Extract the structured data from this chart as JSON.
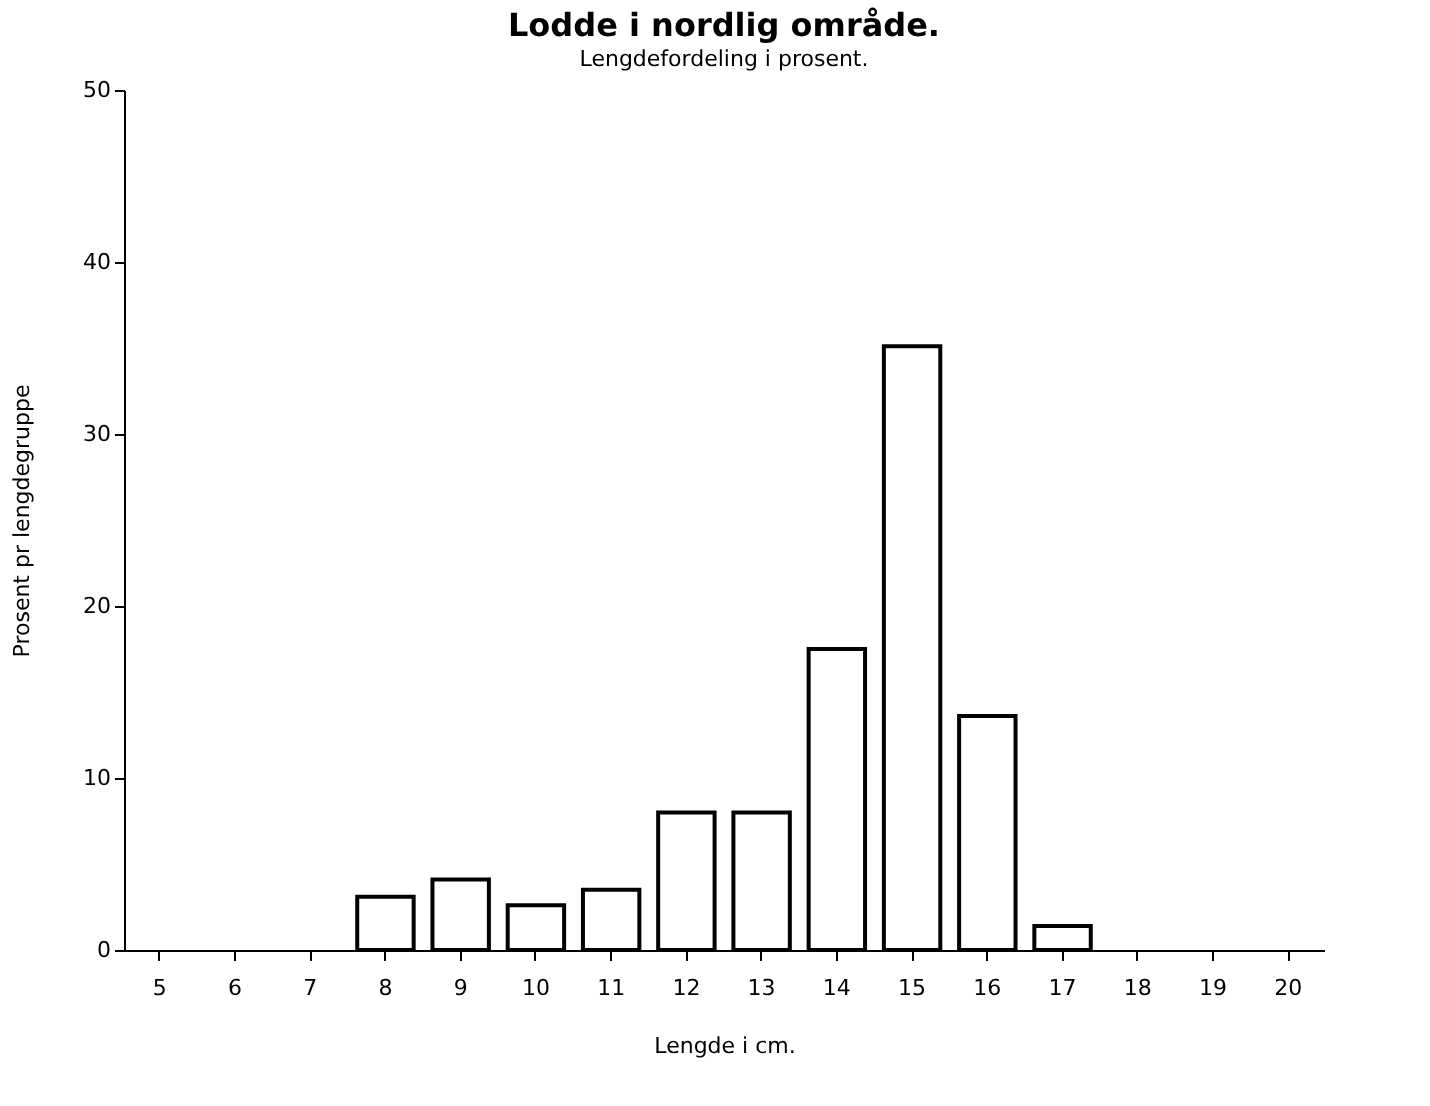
{
  "chart_data": {
    "type": "bar",
    "title": "Lodde i nordlig område.",
    "subtitle": "Lengdefordeling i prosent.",
    "xlabel": "Lengde i cm.",
    "ylabel": "Prosent pr lengdegruppe",
    "categories": [
      "5",
      "6",
      "7",
      "8",
      "9",
      "10",
      "11",
      "12",
      "13",
      "14",
      "15",
      "16",
      "17",
      "18",
      "19",
      "20"
    ],
    "values": [
      null,
      null,
      null,
      3.1,
      4.1,
      2.6,
      3.5,
      8.0,
      8.0,
      17.5,
      35.1,
      13.6,
      1.4,
      null,
      null,
      null
    ],
    "color": "#000000",
    "ylim": [
      0,
      50
    ],
    "yticks": [
      0,
      10,
      20,
      30,
      40,
      50
    ],
    "grid": false
  }
}
